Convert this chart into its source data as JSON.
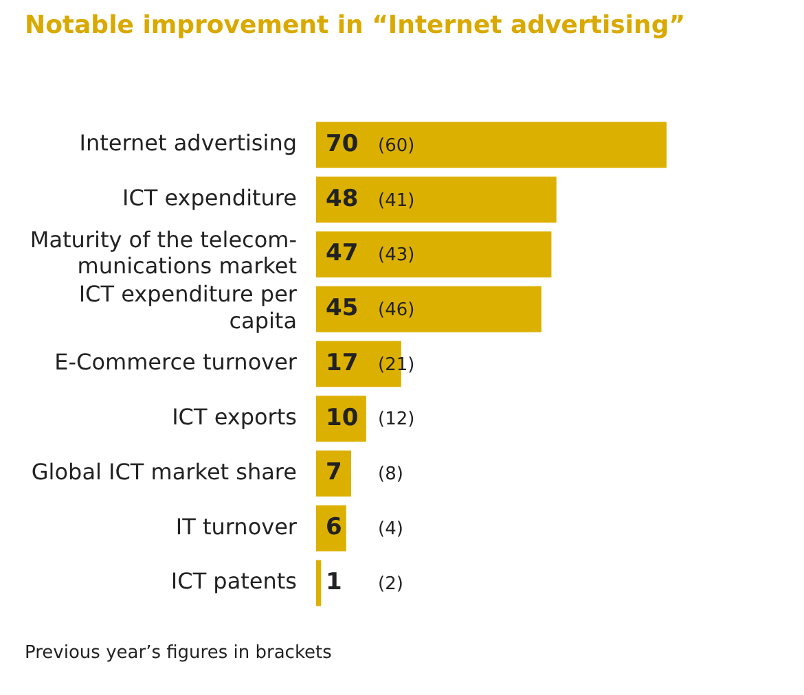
{
  "chart_data": {
    "type": "bar",
    "orientation": "horizontal",
    "title": "Notable improvement in “Internet advertising”",
    "categories": [
      "Internet advertising",
      "ICT expenditure",
      "Maturity of the telecom-munications market",
      "ICT expenditure per capita",
      "E-Commerce turnover",
      "ICT exports",
      "Global ICT market share",
      "IT turnover",
      "ICT patents"
    ],
    "values": [
      70,
      48,
      47,
      45,
      17,
      10,
      7,
      6,
      1
    ],
    "value_labels": [
      "70 (60)",
      "48 (41)",
      "47 (43)",
      "45 (46)",
      "17 (21)",
      "10 (12)",
      "7 (8)",
      "6 (4)",
      "1 (2)"
    ],
    "color": "#dcb000",
    "grid": false,
    "legend": false,
    "tick_labels": "y",
    "annotations": [
      "Previous year’s figures in brackets"
    ]
  }
}
